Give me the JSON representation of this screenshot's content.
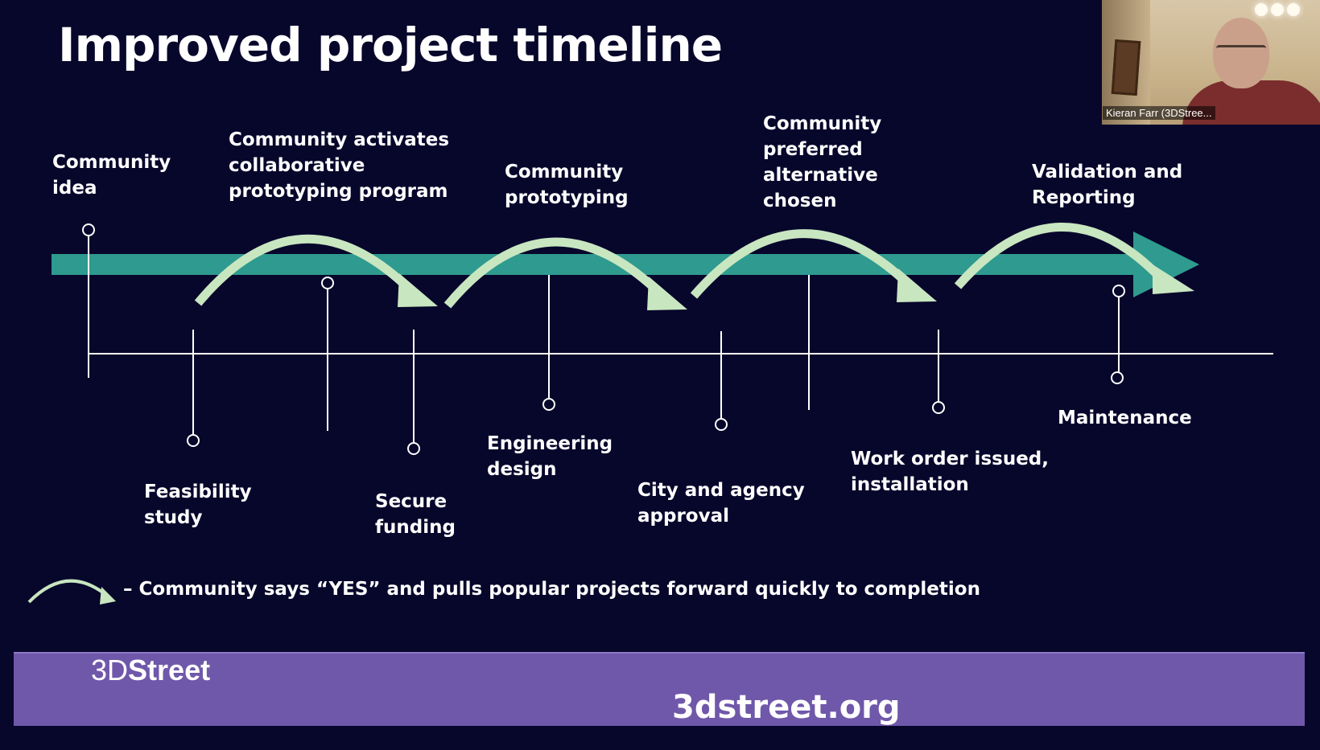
{
  "slide": {
    "title": "Improved project timeline",
    "steps_above": [
      {
        "id": "community-idea",
        "label": "Community\nidea"
      },
      {
        "id": "collab-program",
        "label": "Community activates\ncollaborative\nprototyping program"
      },
      {
        "id": "community-prototyping",
        "label": "Community\nprototyping"
      },
      {
        "id": "preferred-alternative",
        "label": "Community\npreferred\nalternative\nchosen"
      },
      {
        "id": "validation",
        "label": "Validation and\nReporting"
      }
    ],
    "steps_below": [
      {
        "id": "feasibility",
        "label": "Feasibility\nstudy"
      },
      {
        "id": "secure-funding",
        "label": "Secure\nfunding"
      },
      {
        "id": "engineering-design",
        "label": "Engineering\ndesign"
      },
      {
        "id": "city-approval",
        "label": "City and agency\napproval"
      },
      {
        "id": "work-order",
        "label": "Work order issued,\ninstallation"
      },
      {
        "id": "maintenance",
        "label": "Maintenance"
      }
    ],
    "legend_text": "– Community says “YES” and pulls popular projects forward quickly to completion",
    "colors": {
      "background": "#07062b",
      "timeline_arrow": "#2f9a8f",
      "jump_arrow": "#c8e6c0",
      "footer": "#6f58aa"
    }
  },
  "footer": {
    "logo_light": "3D",
    "logo_bold": "Street",
    "website": "3dstreet.org"
  },
  "video_tile": {
    "participant_name": "Kieran Farr (3DStree..."
  }
}
